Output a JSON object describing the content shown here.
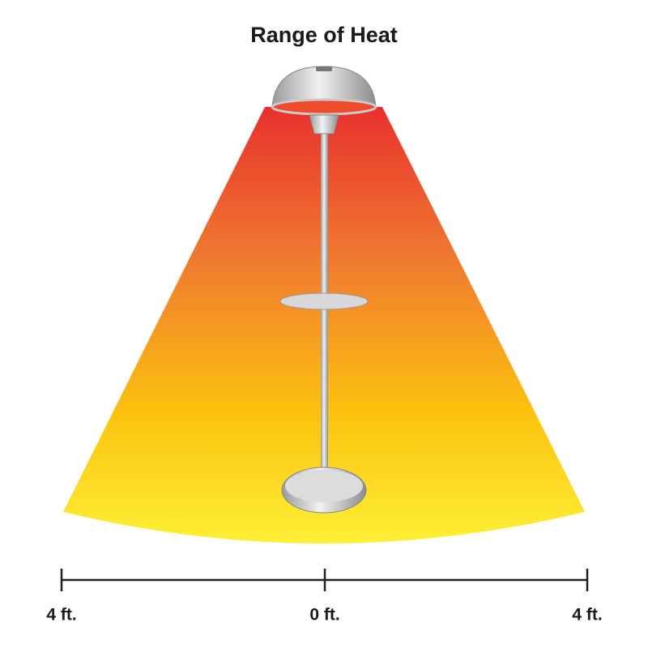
{
  "title": "Range of Heat",
  "scale": {
    "labels": [
      "4 ft.",
      "0 ft.",
      "4 ft."
    ]
  }
}
